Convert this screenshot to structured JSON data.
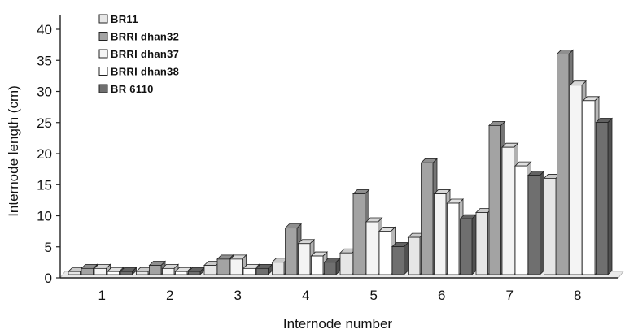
{
  "chart_data": {
    "type": "bar",
    "title": "",
    "xlabel": "Internode number",
    "ylabel": "Internode length (cm)",
    "ylim": [
      0,
      40
    ],
    "yticks": [
      0,
      5,
      10,
      15,
      20,
      25,
      30,
      35,
      40
    ],
    "categories": [
      "1",
      "2",
      "3",
      "4",
      "5",
      "6",
      "7",
      "8"
    ],
    "series": [
      {
        "name": "BR11",
        "color": "#e6e6e6",
        "values": [
          0.5,
          0.5,
          1.5,
          2,
          3.5,
          6,
          10,
          15.5
        ]
      },
      {
        "name": "BRRI dhan32",
        "color": "#a3a3a3",
        "values": [
          1,
          1.5,
          2.5,
          7.5,
          13,
          18,
          24,
          35.5
        ]
      },
      {
        "name": "BRRI dhan37",
        "color": "#f4f4f4",
        "values": [
          1,
          1,
          2.5,
          5,
          8.5,
          13,
          20.5,
          30.5
        ]
      },
      {
        "name": "BRRI dhan38",
        "color": "#ffffff",
        "values": [
          0.5,
          0.5,
          1,
          3,
          7,
          11.5,
          17.5,
          28
        ]
      },
      {
        "name": "BR 6110",
        "color": "#6f6f6f",
        "values": [
          0.5,
          0.5,
          1,
          2,
          4.5,
          9,
          16,
          24.5
        ]
      }
    ],
    "grid": false,
    "legend_position": "top-left",
    "style": "3d-clustered"
  }
}
